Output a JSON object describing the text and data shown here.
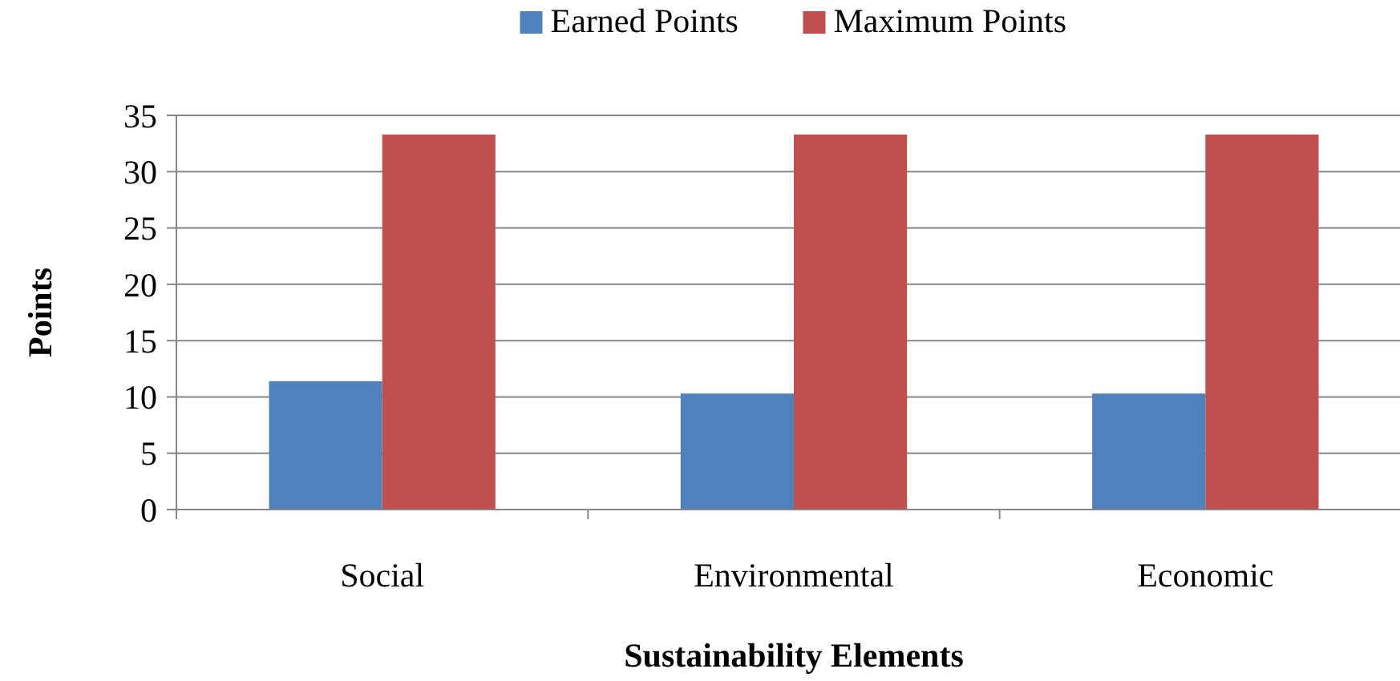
{
  "chart_data": {
    "type": "bar",
    "xlabel": "Sustainability Elements",
    "ylabel": "Points",
    "categories": [
      "Social",
      "Environmental",
      "Economic"
    ],
    "series": [
      {
        "name": "Earned Points",
        "color": "#4f81bd",
        "values": [
          11.4,
          10.3,
          10.3
        ]
      },
      {
        "name": "Maximum Points",
        "color": "#c0504d",
        "values": [
          33.3,
          33.3,
          33.3
        ]
      }
    ],
    "ylim": [
      0,
      35
    ],
    "yticks": [
      0,
      5,
      10,
      15,
      20,
      25,
      30,
      35
    ],
    "grid": "y",
    "legend": "top"
  }
}
